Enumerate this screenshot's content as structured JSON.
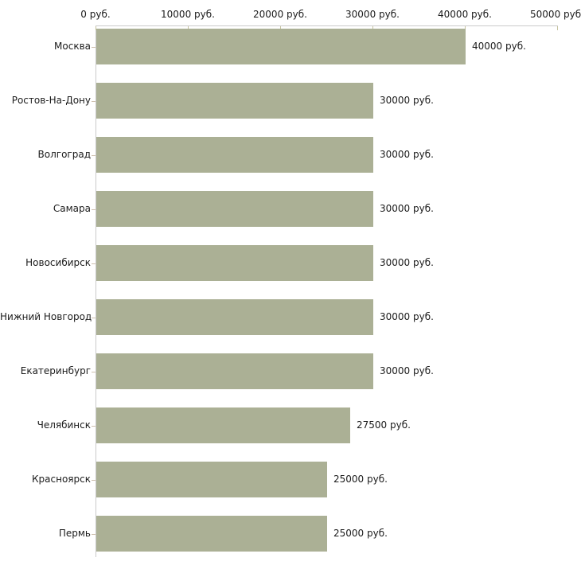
{
  "chart_data": {
    "type": "bar",
    "orientation": "horizontal",
    "categories": [
      "Москва",
      "Ростов-На-Дону",
      "Волгоград",
      "Самара",
      "Новосибирск",
      "Нижний Новгород",
      "Екатеринбург",
      "Челябинск",
      "Красноярск",
      "Пермь"
    ],
    "values": [
      40000,
      30000,
      30000,
      30000,
      30000,
      30000,
      30000,
      27500,
      25000,
      25000
    ],
    "bar_labels": [
      "40000 руб.",
      "30000 руб.",
      "30000 руб.",
      "30000 руб.",
      "30000 руб.",
      "30000 руб.",
      "30000 руб.",
      "27500 руб.",
      "25000 руб.",
      "25000 руб."
    ],
    "title": "",
    "xlabel": "",
    "ylabel": "",
    "x_axis": {
      "position": "top",
      "range": [
        0,
        50000
      ],
      "ticks": [
        0,
        10000,
        20000,
        30000,
        40000,
        50000
      ],
      "tick_labels": [
        "0 руб.",
        "10000 руб.",
        "20000 руб.",
        "30000 руб.",
        "40000 руб.",
        "50000 руб."
      ]
    },
    "grid": false,
    "legend": false,
    "colors": {
      "bar": "#abb095",
      "axis_line": "#cbcbcb",
      "x_tick": "#c6c3a0",
      "category_tick": "#cdbfae",
      "text": "#1b1b1b",
      "background": "#ffffff"
    }
  }
}
